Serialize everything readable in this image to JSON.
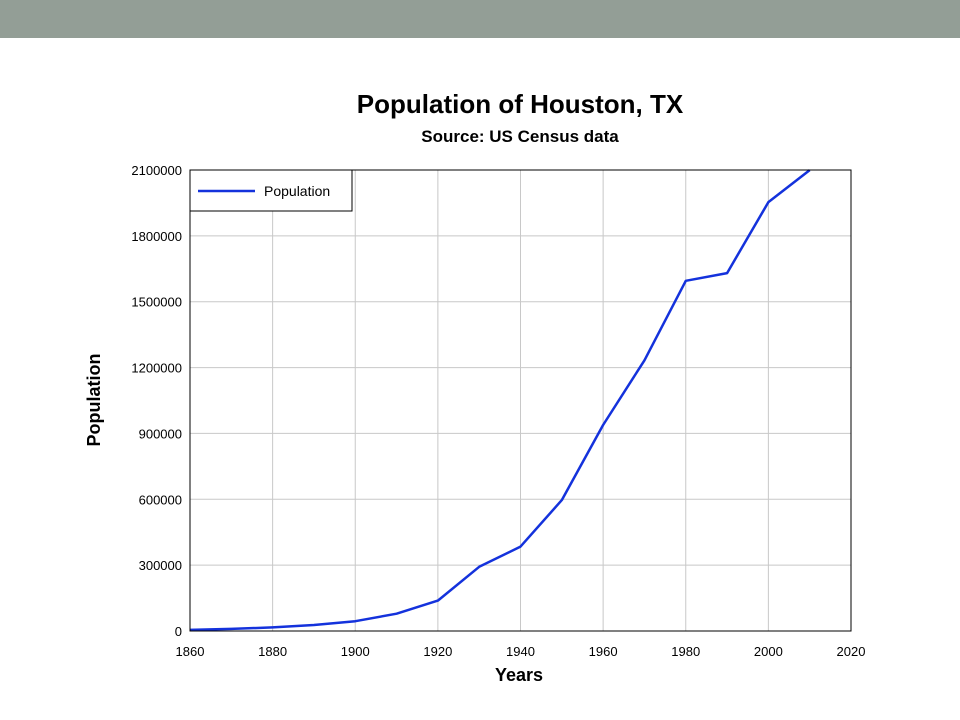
{
  "chart_data": {
    "type": "line",
    "title": "Population of Houston, TX",
    "subtitle": "Source: US Census data",
    "xlabel": "Years",
    "ylabel": "Population",
    "xlim": [
      1860,
      2020
    ],
    "ylim": [
      0,
      2100000
    ],
    "xticks": [
      "1860",
      "1880",
      "1900",
      "1920",
      "1940",
      "1960",
      "1980",
      "2000",
      "2020"
    ],
    "yticks": [
      "0",
      "300000",
      "600000",
      "900000",
      "1200000",
      "1500000",
      "1800000",
      "2100000"
    ],
    "grid": true,
    "legend_position": "top-left",
    "series": [
      {
        "name": "Population",
        "color": "#1432dc",
        "x": [
          1860,
          1870,
          1880,
          1890,
          1900,
          1910,
          1920,
          1930,
          1940,
          1950,
          1960,
          1970,
          1980,
          1990,
          2000,
          2010
        ],
        "y": [
          4845,
          9382,
          16513,
          27557,
          44633,
          78800,
          138276,
          292352,
          384514,
          596163,
          938219,
          1232802,
          1595138,
          1630553,
          1953631,
          2099451
        ]
      }
    ]
  }
}
